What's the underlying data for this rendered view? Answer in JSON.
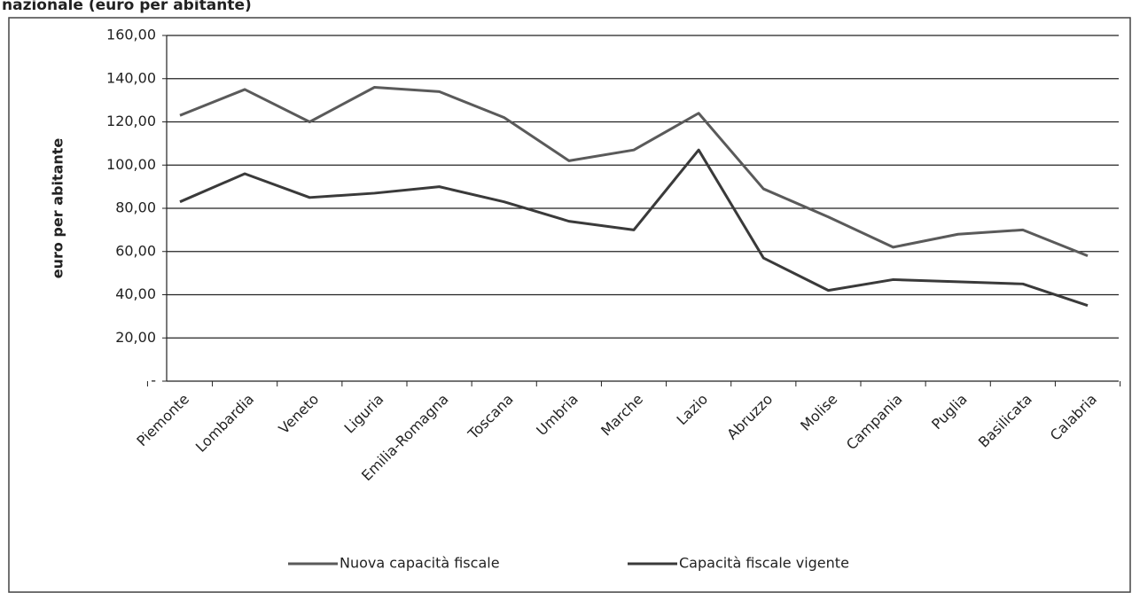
{
  "chart_data": {
    "type": "line",
    "title": "nazionale (euro per abitante)",
    "y_label": "euro per abitante",
    "categories": [
      "Piemonte",
      "Lombardia",
      "Veneto",
      "Liguria",
      "Emilia-Romagna",
      "Toscana",
      "Umbria",
      "Marche",
      "Lazio",
      "Abruzzo",
      "Molise",
      "Campania",
      "Puglia",
      "Basilicata",
      "Calabria"
    ],
    "series": [
      {
        "name": "Nuova capacità fiscale",
        "color": "#5a5a5a",
        "values": [
          123,
          135,
          120,
          136,
          134,
          122,
          102,
          107,
          124,
          89,
          76,
          62,
          68,
          70,
          58
        ]
      },
      {
        "name": "Capacità fiscale vigente",
        "color": "#3a3a3a",
        "values": [
          83,
          96,
          85,
          87,
          90,
          83,
          74,
          70,
          107,
          57,
          42,
          47,
          46,
          45,
          35
        ]
      }
    ],
    "ylim": [
      0,
      160
    ],
    "yticks": [
      {
        "value": 0,
        "label": "-"
      },
      {
        "value": 20,
        "label": "20,00"
      },
      {
        "value": 40,
        "label": "40,00"
      },
      {
        "value": 60,
        "label": "60,00"
      },
      {
        "value": 80,
        "label": "80,00"
      },
      {
        "value": 100,
        "label": "100,00"
      },
      {
        "value": 120,
        "label": "120,00"
      },
      {
        "value": 140,
        "label": "140,00"
      },
      {
        "value": 160,
        "label": "160,00"
      }
    ],
    "grid": true,
    "legend": "bottom"
  }
}
